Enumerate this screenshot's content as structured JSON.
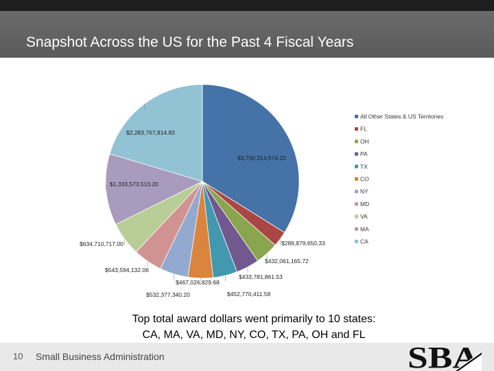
{
  "slide": {
    "title": "Snapshot Across the US for the Past 4 Fiscal Years",
    "caption_line1": "Top total award dollars went primarily to 10 states:",
    "caption_line2": "CA, MA, VA, MD, NY, CO, TX, PA, OH and FL",
    "slide_number": "10",
    "footer": "Small Business Administration",
    "logo_text": "SBA"
  },
  "colors": {
    "title_bar": "#5f5f5f",
    "footer_bar": "#e9e9e9"
  },
  "chart_data": {
    "type": "pie",
    "title": "",
    "legend_position": "right",
    "categories": [
      "All Other States & US Territories",
      "FL",
      "OH",
      "PA",
      "TX",
      "CO",
      "NY",
      "MD",
      "VA",
      "MA",
      "CA"
    ],
    "values": [
      3790314574.23,
      289879650.33,
      432061165.72,
      433781861.53,
      452770411.58,
      467026829.68,
      532377340.2,
      543594132.06,
      634710717.0,
      1333573513.2,
      2283767814.83
    ],
    "data_labels": [
      "$3,790,314,574.23",
      "$289,879,650.33",
      "$432,061,165.72",
      "$433,781,861.53",
      "$452,770,411.58",
      "$467,026,829.68",
      "$532,377,340.20",
      "$543,594,132.06",
      "$634,710,717.00",
      "$1,333,573,513.20",
      "$2,283,767,814.83"
    ],
    "colors": [
      "#4572a7",
      "#aa4643",
      "#89a54e",
      "#71588f",
      "#4198af",
      "#db843d",
      "#93a9cf",
      "#d19392",
      "#b9cd96",
      "#a99bbd",
      "#92c3d4"
    ]
  }
}
